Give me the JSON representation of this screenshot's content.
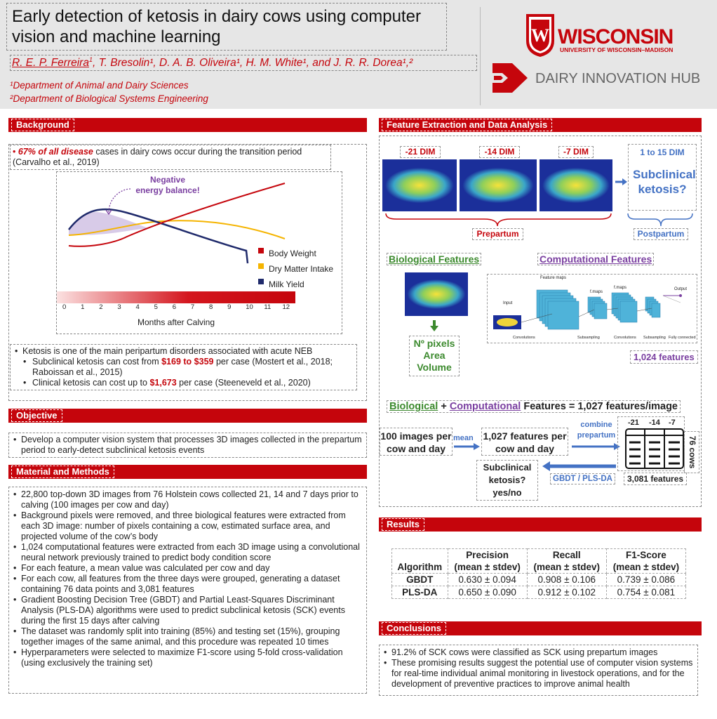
{
  "header": {
    "title": "Early detection of ketosis in dairy cows using computer vision and machine learning",
    "authors_first": "R. E. P. Ferreira",
    "authors_first_sup": "1",
    "authors_rest": ", T. Bresolin¹, D. A. B. Oliveira¹, H. M. White¹, and J. R. R. Dorea¹,²",
    "dept1": "¹Department of Animal and Dairy Sciences",
    "dept2": "²Department of Biological Systems Engineering",
    "uw_name": "WISCONSIN",
    "uw_sub": "UNIVERSITY OF WISCONSIN–MADISON",
    "hub_name": "DAIRY INNOVATION HUB",
    "colors": {
      "brand_red": "#c5050c",
      "header_bg": "#e6e6e6"
    }
  },
  "background": {
    "title": "Background",
    "b1_highlight": "67% of all disease",
    "b1_rest": " cases in dairy cows occur during the transition period (Carvalho et al., 2019)",
    "neb_label_1": "Negative",
    "neb_label_2": "energy balance!",
    "legend": [
      "Body Weight",
      "Dry Matter Intake",
      "Milk Yield"
    ],
    "xaxis_ticks": [
      "0",
      "1",
      "2",
      "3",
      "4",
      "5",
      "6",
      "7",
      "8",
      "9",
      "10",
      "11",
      "12"
    ],
    "xaxis_label": "Months after Calving",
    "k1": "Ketosis is one of the main peripartum disorders associated with acute NEB",
    "k2a": "Subclinical ketosis can cost from ",
    "k2b": "$169 to $359",
    "k2c": " per case (Mostert et al., 2018; Raboissan et al., 2015)",
    "k3a": "Clinical ketosis can cost up to ",
    "k3b": "$1,673",
    "k3c": " per case (Steeneveld et al., 2020)"
  },
  "objective": {
    "title": "Objective",
    "text": "Develop a computer vision system that processes 3D images collected in the prepartum period to early-detect subclinical ketosis events"
  },
  "methods": {
    "title": "Material and Methods",
    "items": [
      "22,800 top-down 3D images from 76 Holstein cows collected 21, 14 and 7 days prior to calving (100 images per cow and day)",
      "Background pixels were removed, and three biological features were extracted from each 3D image: number of pixels containing a cow, estimated surface area, and projected volume of the cow’s body",
      "1,024 computational features were extracted from each 3D image using a convolutional neural network previously trained to predict body condition score",
      "For each feature, a mean value was calculated per cow and day",
      "For each cow, all features from the three days were grouped, generating a dataset containing 76 data points and 3,081 features",
      "Gradient Boosting Decision Tree (GBDT) and Partial Least-Squares Discriminant Analysis (PLS-DA) algorithms were used to predict subclinical ketosis (SCK) events during the first 15 days after calving",
      "The dataset was randomly split into training (85%) and testing set (15%), grouping together images of the same animal, and this procedure was repeated 10 times",
      "Hyperparameters were selected to maximize F1-score using 5-fold cross-validation (using exclusively the training set)"
    ]
  },
  "feature": {
    "title": "Feature Extraction and Data Analysis",
    "dims": [
      "-21 DIM",
      "-14 DIM",
      "-7 DIM"
    ],
    "post_dim": "1 to 15 DIM",
    "sck_q": "Subclinical ketosis?",
    "prepartum": "Prepartum",
    "postpartum": "Postpartum",
    "bio_title": "Biological Features",
    "comp_title": "Computational Features",
    "bio_list": "Nº pixels Area Volume",
    "cnn_labels": [
      "Feature maps",
      "f.maps",
      "f.maps",
      "Output",
      "Input",
      "Convolutions",
      "Subsampling",
      "Convolutions",
      "Subsampling",
      "Fully connected"
    ],
    "features_1024": "1,024 features",
    "eq_bio": "Biological",
    "eq_plus": " + ",
    "eq_comp": "Computational",
    "eq_rest": " Features = 1,027 features/image",
    "box_100": "100 images per cow and day",
    "mean": "mean",
    "box_1027": "1,027 features per cow and day",
    "combine": "combine prepartum",
    "mat_days": [
      "-21",
      "-14",
      "-7"
    ],
    "cows": "76 cows",
    "features_3081": "3,081 features",
    "algos": "GBDT / PLS-DA",
    "final_q": "Subclinical ketosis? yes/no"
  },
  "results": {
    "title": "Results",
    "headers": [
      "Algorithm",
      "Precision",
      "Recall",
      "F1-Score"
    ],
    "subheader": "(mean ± stdev)",
    "rows": [
      {
        "alg": "GBDT",
        "p": "0.630 ± 0.094",
        "r": "0.908 ± 0.106",
        "f": "0.739 ± 0.086"
      },
      {
        "alg": "PLS-DA",
        "p": "0.650 ± 0.090",
        "r": "0.912 ± 0.102",
        "f": "0.754 ± 0.081"
      }
    ]
  },
  "conclusions": {
    "title": "Conclusions",
    "items": [
      "91.2% of SCK cows were classified as SCK using prepartum images",
      "These promising results suggest the potential use of computer vision systems for real-time individual animal monitoring in livestock operations, and for the development of preventive practices to improve animal health"
    ]
  }
}
